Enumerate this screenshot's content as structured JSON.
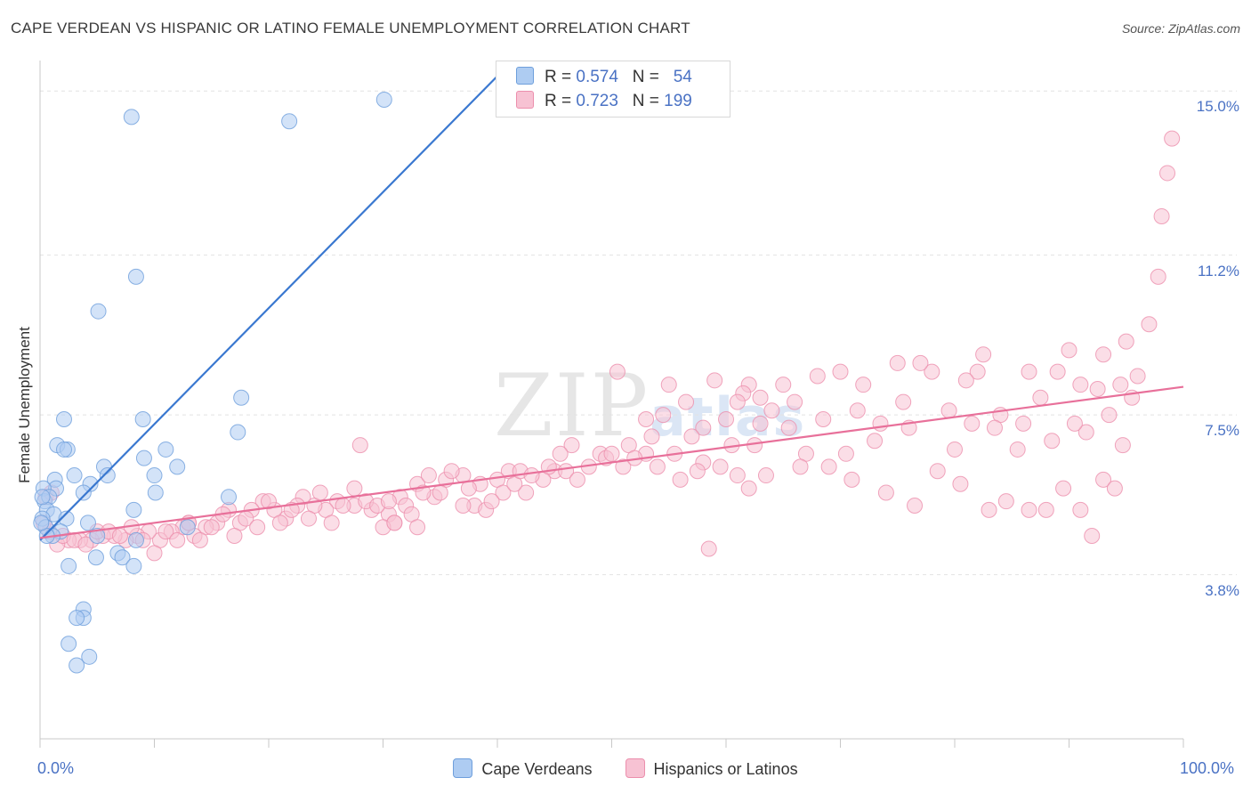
{
  "title": "CAPE VERDEAN VS HISPANIC OR LATINO FEMALE UNEMPLOYMENT CORRELATION CHART",
  "source": "Source: ZipAtlas.com",
  "watermark": {
    "zip": "ZIP",
    "atlas": "atlas"
  },
  "legend": {
    "r_label": "R = ",
    "n_label": "N = ",
    "series": [
      {
        "r": "0.574",
        "n": "54",
        "fill": "#aeccf2",
        "stroke": "#6e9fdc"
      },
      {
        "r": "0.723",
        "n": "199",
        "fill": "#f7c2d3",
        "stroke": "#ec8fad"
      }
    ]
  },
  "bottom_legend": [
    "Cape Verdeans",
    "Hispanics or Latinos"
  ],
  "chart_data": {
    "type": "scatter",
    "title": "CAPE VERDEAN VS HISPANIC OR LATINO FEMALE UNEMPLOYMENT CORRELATION CHART",
    "xlabel": "",
    "ylabel": "Female Unemployment",
    "xlim": [
      0,
      100
    ],
    "ylim": [
      0,
      15.5
    ],
    "x_tick_labels": [
      "0.0%",
      "100.0%"
    ],
    "y_ticks": [
      3.8,
      7.5,
      11.2,
      15.0
    ],
    "y_tick_labels": [
      "3.8%",
      "7.5%",
      "11.2%",
      "15.0%"
    ],
    "grid": true,
    "colors": {
      "blue_line": "#3a78d0",
      "pink_line": "#e8709a",
      "grid": "#e2e2e2",
      "axis": "#c8c8c8"
    },
    "series": [
      {
        "name": "Cape Verdeans",
        "color": "#aeccf2",
        "trend": {
          "x": [
            0,
            40.2
          ],
          "y": [
            4.6,
            15.4
          ]
        },
        "points": [
          [
            30.1,
            14.8
          ],
          [
            8.0,
            14.4
          ],
          [
            21.8,
            14.3
          ],
          [
            8.4,
            10.7
          ],
          [
            5.1,
            9.9
          ],
          [
            17.6,
            7.9
          ],
          [
            17.3,
            7.1
          ],
          [
            9.0,
            7.4
          ],
          [
            2.1,
            7.4
          ],
          [
            1.5,
            6.8
          ],
          [
            2.4,
            6.7
          ],
          [
            2.1,
            6.7
          ],
          [
            11.0,
            6.7
          ],
          [
            9.1,
            6.5
          ],
          [
            12.0,
            6.3
          ],
          [
            5.6,
            6.3
          ],
          [
            3.0,
            6.1
          ],
          [
            5.9,
            6.1
          ],
          [
            10.0,
            6.1
          ],
          [
            1.3,
            6.0
          ],
          [
            4.4,
            5.9
          ],
          [
            1.4,
            5.8
          ],
          [
            0.3,
            5.8
          ],
          [
            0.4,
            5.5
          ],
          [
            3.8,
            5.7
          ],
          [
            16.5,
            5.6
          ],
          [
            10.1,
            5.7
          ],
          [
            0.8,
            5.6
          ],
          [
            0.6,
            5.3
          ],
          [
            8.2,
            5.3
          ],
          [
            1.2,
            5.2
          ],
          [
            2.3,
            5.1
          ],
          [
            4.2,
            5.0
          ],
          [
            0.2,
            5.1
          ],
          [
            0.5,
            4.9
          ],
          [
            1.8,
            4.8
          ],
          [
            12.9,
            4.9
          ],
          [
            1.1,
            4.7
          ],
          [
            0.6,
            4.7
          ],
          [
            5.0,
            4.7
          ],
          [
            8.4,
            4.6
          ],
          [
            6.8,
            4.3
          ],
          [
            4.9,
            4.2
          ],
          [
            7.2,
            4.2
          ],
          [
            8.2,
            4.0
          ],
          [
            2.5,
            4.0
          ],
          [
            3.8,
            3.0
          ],
          [
            3.8,
            2.8
          ],
          [
            3.2,
            2.8
          ],
          [
            2.5,
            2.2
          ],
          [
            4.3,
            1.9
          ],
          [
            3.2,
            1.7
          ],
          [
            0.1,
            5.0
          ],
          [
            0.2,
            5.6
          ]
        ]
      },
      {
        "name": "Hispanics or Latinos",
        "color": "#f7c2d3",
        "trend": {
          "x": [
            0,
            100
          ],
          "y": [
            4.65,
            8.15
          ]
        },
        "points": [
          [
            99.0,
            13.9
          ],
          [
            98.6,
            13.1
          ],
          [
            98.1,
            12.1
          ],
          [
            97.8,
            10.7
          ],
          [
            97.0,
            9.6
          ],
          [
            95.0,
            9.2
          ],
          [
            93.0,
            8.9
          ],
          [
            90.0,
            9.0
          ],
          [
            96.0,
            8.4
          ],
          [
            94.5,
            8.2
          ],
          [
            92.5,
            8.1
          ],
          [
            91.0,
            8.2
          ],
          [
            89.0,
            8.5
          ],
          [
            86.5,
            8.5
          ],
          [
            82.0,
            8.5
          ],
          [
            82.5,
            8.9
          ],
          [
            81.0,
            8.3
          ],
          [
            78.0,
            8.5
          ],
          [
            77.0,
            8.7
          ],
          [
            75.0,
            8.7
          ],
          [
            72.0,
            8.2
          ],
          [
            70.0,
            8.5
          ],
          [
            68.0,
            8.4
          ],
          [
            65.0,
            8.2
          ],
          [
            63.0,
            7.9
          ],
          [
            62.0,
            8.2
          ],
          [
            61.5,
            8.0
          ],
          [
            59.0,
            8.3
          ],
          [
            55.0,
            8.2
          ],
          [
            50.5,
            8.5
          ],
          [
            54.5,
            7.5
          ],
          [
            53.0,
            7.4
          ],
          [
            56.5,
            7.8
          ],
          [
            58.0,
            7.2
          ],
          [
            60.0,
            7.4
          ],
          [
            61.0,
            7.8
          ],
          [
            64.0,
            7.6
          ],
          [
            66.0,
            7.8
          ],
          [
            68.5,
            7.4
          ],
          [
            71.5,
            7.6
          ],
          [
            73.5,
            7.3
          ],
          [
            75.5,
            7.8
          ],
          [
            79.5,
            7.6
          ],
          [
            81.5,
            7.3
          ],
          [
            84.0,
            7.5
          ],
          [
            86.0,
            7.3
          ],
          [
            87.5,
            7.9
          ],
          [
            88.5,
            6.9
          ],
          [
            91.5,
            7.1
          ],
          [
            93.5,
            7.5
          ],
          [
            95.5,
            7.9
          ],
          [
            94.7,
            6.8
          ],
          [
            90.5,
            7.3
          ],
          [
            85.5,
            6.7
          ],
          [
            83.5,
            7.2
          ],
          [
            80.0,
            6.7
          ],
          [
            76.0,
            7.2
          ],
          [
            73.0,
            6.9
          ],
          [
            70.5,
            6.6
          ],
          [
            67.0,
            6.6
          ],
          [
            65.5,
            7.2
          ],
          [
            63.0,
            7.3
          ],
          [
            62.5,
            6.8
          ],
          [
            60.5,
            6.8
          ],
          [
            58.0,
            6.4
          ],
          [
            57.0,
            7.0
          ],
          [
            55.5,
            6.6
          ],
          [
            53.0,
            6.6
          ],
          [
            51.0,
            6.3
          ],
          [
            49.0,
            6.6
          ],
          [
            46.5,
            6.8
          ],
          [
            45.0,
            6.2
          ],
          [
            44.0,
            6.0
          ],
          [
            42.5,
            5.7
          ],
          [
            41.0,
            6.2
          ],
          [
            40.0,
            6.0
          ],
          [
            38.5,
            5.9
          ],
          [
            37.0,
            6.1
          ],
          [
            35.5,
            6.0
          ],
          [
            34.5,
            5.6
          ],
          [
            33.0,
            5.9
          ],
          [
            31.5,
            5.6
          ],
          [
            30.5,
            5.2
          ],
          [
            29.0,
            5.3
          ],
          [
            27.5,
            5.4
          ],
          [
            26.0,
            5.5
          ],
          [
            25.0,
            5.3
          ],
          [
            24.0,
            5.4
          ],
          [
            23.0,
            5.6
          ],
          [
            22.5,
            5.4
          ],
          [
            21.5,
            5.1
          ],
          [
            20.5,
            5.3
          ],
          [
            19.5,
            5.5
          ],
          [
            18.5,
            5.3
          ],
          [
            17.5,
            5.0
          ],
          [
            16.5,
            5.3
          ],
          [
            15.5,
            5.0
          ],
          [
            14.5,
            4.9
          ],
          [
            13.5,
            4.7
          ],
          [
            12.5,
            4.9
          ],
          [
            11.5,
            4.8
          ],
          [
            10.5,
            4.6
          ],
          [
            9.5,
            4.8
          ],
          [
            8.5,
            4.7
          ],
          [
            7.5,
            4.6
          ],
          [
            6.5,
            4.7
          ],
          [
            5.5,
            4.7
          ],
          [
            4.5,
            4.6
          ],
          [
            3.5,
            4.6
          ],
          [
            2.5,
            4.6
          ],
          [
            1.5,
            4.5
          ],
          [
            0.8,
            4.8
          ],
          [
            0.3,
            5.0
          ],
          [
            0.5,
            5.6
          ],
          [
            1.0,
            5.7
          ],
          [
            2.0,
            4.7
          ],
          [
            3.0,
            4.6
          ],
          [
            4.0,
            4.5
          ],
          [
            5.0,
            4.8
          ],
          [
            6.0,
            4.8
          ],
          [
            7.0,
            4.7
          ],
          [
            8.0,
            4.9
          ],
          [
            9.0,
            4.6
          ],
          [
            10.0,
            4.3
          ],
          [
            11.0,
            4.8
          ],
          [
            12.0,
            4.6
          ],
          [
            13.0,
            5.0
          ],
          [
            14.0,
            4.6
          ],
          [
            15.0,
            4.9
          ],
          [
            16.0,
            5.2
          ],
          [
            17.0,
            4.7
          ],
          [
            18.0,
            5.1
          ],
          [
            19.0,
            4.9
          ],
          [
            20.0,
            5.5
          ],
          [
            21.0,
            5.0
          ],
          [
            22.0,
            5.3
          ],
          [
            23.5,
            5.1
          ],
          [
            24.5,
            5.7
          ],
          [
            25.5,
            5.0
          ],
          [
            26.5,
            5.4
          ],
          [
            27.5,
            5.8
          ],
          [
            28.5,
            5.5
          ],
          [
            29.5,
            5.4
          ],
          [
            30.5,
            5.5
          ],
          [
            31.0,
            5.0
          ],
          [
            32.0,
            5.4
          ],
          [
            33.5,
            5.7
          ],
          [
            34.0,
            6.1
          ],
          [
            35.0,
            5.7
          ],
          [
            36.0,
            6.2
          ],
          [
            37.5,
            5.8
          ],
          [
            38.0,
            5.4
          ],
          [
            39.0,
            5.3
          ],
          [
            40.5,
            5.7
          ],
          [
            41.5,
            5.9
          ],
          [
            42.0,
            6.2
          ],
          [
            43.0,
            6.1
          ],
          [
            44.5,
            6.3
          ],
          [
            45.5,
            6.6
          ],
          [
            46.0,
            6.2
          ],
          [
            47.0,
            6.0
          ],
          [
            48.0,
            6.3
          ],
          [
            49.5,
            6.5
          ],
          [
            50.0,
            6.6
          ],
          [
            51.5,
            6.8
          ],
          [
            52.0,
            6.5
          ],
          [
            53.5,
            7.0
          ],
          [
            54.0,
            6.3
          ],
          [
            56.0,
            6.0
          ],
          [
            57.5,
            6.2
          ],
          [
            59.5,
            6.3
          ],
          [
            61.0,
            6.1
          ],
          [
            62.0,
            5.8
          ],
          [
            63.5,
            6.1
          ],
          [
            66.5,
            6.3
          ],
          [
            69.0,
            6.3
          ],
          [
            71.0,
            6.0
          ],
          [
            74.0,
            5.7
          ],
          [
            76.5,
            5.4
          ],
          [
            78.5,
            6.2
          ],
          [
            80.5,
            5.9
          ],
          [
            83.0,
            5.3
          ],
          [
            84.5,
            5.5
          ],
          [
            86.5,
            5.3
          ],
          [
            88.0,
            5.3
          ],
          [
            89.5,
            5.8
          ],
          [
            91.0,
            5.3
          ],
          [
            92.0,
            4.7
          ],
          [
            93.0,
            6.0
          ],
          [
            94.0,
            5.8
          ],
          [
            58.5,
            4.4
          ],
          [
            28.0,
            6.8
          ],
          [
            30.0,
            4.9
          ],
          [
            31.0,
            5.0
          ],
          [
            32.5,
            5.2
          ],
          [
            37.0,
            5.4
          ],
          [
            39.5,
            5.5
          ],
          [
            13.0,
            5.0
          ],
          [
            33.0,
            4.9
          ]
        ]
      }
    ]
  }
}
